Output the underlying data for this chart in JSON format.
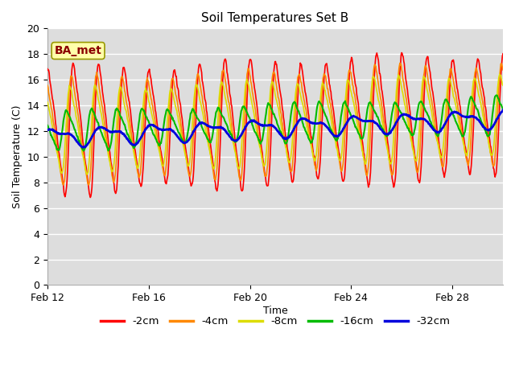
{
  "title": "Soil Temperatures Set B",
  "xlabel": "Time",
  "ylabel": "Soil Temperature (C)",
  "ylim": [
    0,
    20
  ],
  "yticks": [
    0,
    2,
    4,
    6,
    8,
    10,
    12,
    14,
    16,
    18,
    20
  ],
  "plot_bg_color": "#dddddd",
  "grid_color": "#ffffff",
  "annotation_text": "BA_met",
  "annotation_color": "#8b0000",
  "annotation_bg": "#ffffaa",
  "legend_labels": [
    "-2cm",
    "-4cm",
    "-8cm",
    "-16cm",
    "-32cm"
  ],
  "line_colors": [
    "#ff0000",
    "#ff8800",
    "#dddd00",
    "#00bb00",
    "#0000dd"
  ],
  "line_widths": [
    1.2,
    1.2,
    1.2,
    1.5,
    2.0
  ],
  "x_tick_days": [
    12,
    16,
    20,
    24,
    28
  ]
}
